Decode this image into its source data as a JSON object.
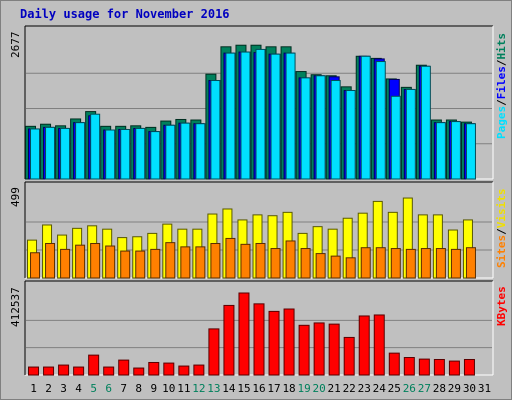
{
  "chart_data": {
    "type": "bar",
    "title": "Daily usage for November 2016",
    "categories": [
      "1",
      "2",
      "3",
      "4",
      "5",
      "6",
      "7",
      "8",
      "9",
      "10",
      "11",
      "12",
      "13",
      "14",
      "15",
      "16",
      "17",
      "18",
      "19",
      "20",
      "21",
      "22",
      "23",
      "24",
      "25",
      "26",
      "27",
      "28",
      "29",
      "30",
      "31"
    ],
    "weekend_days": [
      "5",
      "6",
      "12",
      "13",
      "19",
      "20",
      "26",
      "27"
    ],
    "panels": [
      {
        "max_label": "2677",
        "ymax": 2677,
        "axis_labels": [
          {
            "text": "Hits",
            "color": "#00805c"
          },
          {
            "text": "Files",
            "color": "#0000ff"
          },
          {
            "text": "Pages",
            "color": "#00e0ff"
          }
        ],
        "series": [
          {
            "name": "Hits",
            "color": "#00805c",
            "values": [
              1000,
              1040,
              1010,
              1140,
              1280,
              1000,
              1000,
              1010,
              980,
              1100,
              1130,
              1120,
              1990,
              2510,
              2540,
              2540,
              2510,
              2510,
              2040,
              1980,
              1960,
              1750,
              2330,
              2290,
              1900,
              1740,
              2160,
              1120,
              1120,
              1080,
              0
            ]
          },
          {
            "name": "Files",
            "color": "#0000ff",
            "values": [
              950,
              980,
              960,
              1070,
              1200,
              930,
              940,
              960,
              900,
              1020,
              1060,
              1050,
              1870,
              2390,
              2410,
              2400,
              2370,
              2390,
              1920,
              1960,
              1940,
              1680,
              2330,
              2280,
              1890,
              1700,
              2140,
              1070,
              1090,
              1050,
              0
            ]
          },
          {
            "name": "Pages",
            "color": "#00e0ff",
            "values": [
              950,
              980,
              960,
              1070,
              1230,
              930,
              940,
              960,
              900,
              1020,
              1060,
              1050,
              1870,
              2390,
              2410,
              2460,
              2370,
              2390,
              1920,
              1960,
              1870,
              1680,
              2330,
              2230,
              1570,
              1700,
              2140,
              1070,
              1090,
              1050,
              0
            ]
          }
        ]
      },
      {
        "max_label": "499",
        "ymax": 499,
        "axis_labels": [
          {
            "text": "Visits",
            "color": "#f0e000"
          },
          {
            "text": "Sites",
            "color": "#ff8000"
          }
        ],
        "series": [
          {
            "name": "Visits",
            "color": "#ffff00",
            "values": [
              225,
              315,
              255,
              295,
              310,
              290,
              240,
              245,
              265,
              320,
              290,
              290,
              380,
              410,
              345,
              375,
              370,
              390,
              265,
              305,
              290,
              355,
              385,
              455,
              390,
              475,
              375,
              375,
              285,
              345,
              0
            ]
          },
          {
            "name": "Sites",
            "color": "#ff8000",
            "values": [
              150,
              205,
              170,
              195,
              205,
              190,
              160,
              160,
              170,
              210,
              185,
              185,
              205,
              235,
              200,
              205,
              175,
              220,
              175,
              145,
              130,
              120,
              180,
              180,
              175,
              170,
              175,
              175,
              170,
              180,
              0
            ]
          }
        ]
      },
      {
        "max_label": "412537",
        "ymax": 412537,
        "axis_labels": [
          {
            "text": "KBytes",
            "color": "#ff0000"
          }
        ],
        "series": [
          {
            "name": "KBytes",
            "color": "#ff0000",
            "values": [
              40000,
              40000,
              50000,
              40000,
              100000,
              40000,
              75000,
              35000,
              63000,
              60000,
              45000,
              50000,
              232000,
              350000,
              412537,
              358000,
              320000,
              332000,
              250000,
              262000,
              256000,
              189000,
              297000,
              302000,
              110000,
              88000,
              80000,
              78000,
              70000,
              78000,
              0
            ]
          }
        ]
      }
    ]
  }
}
